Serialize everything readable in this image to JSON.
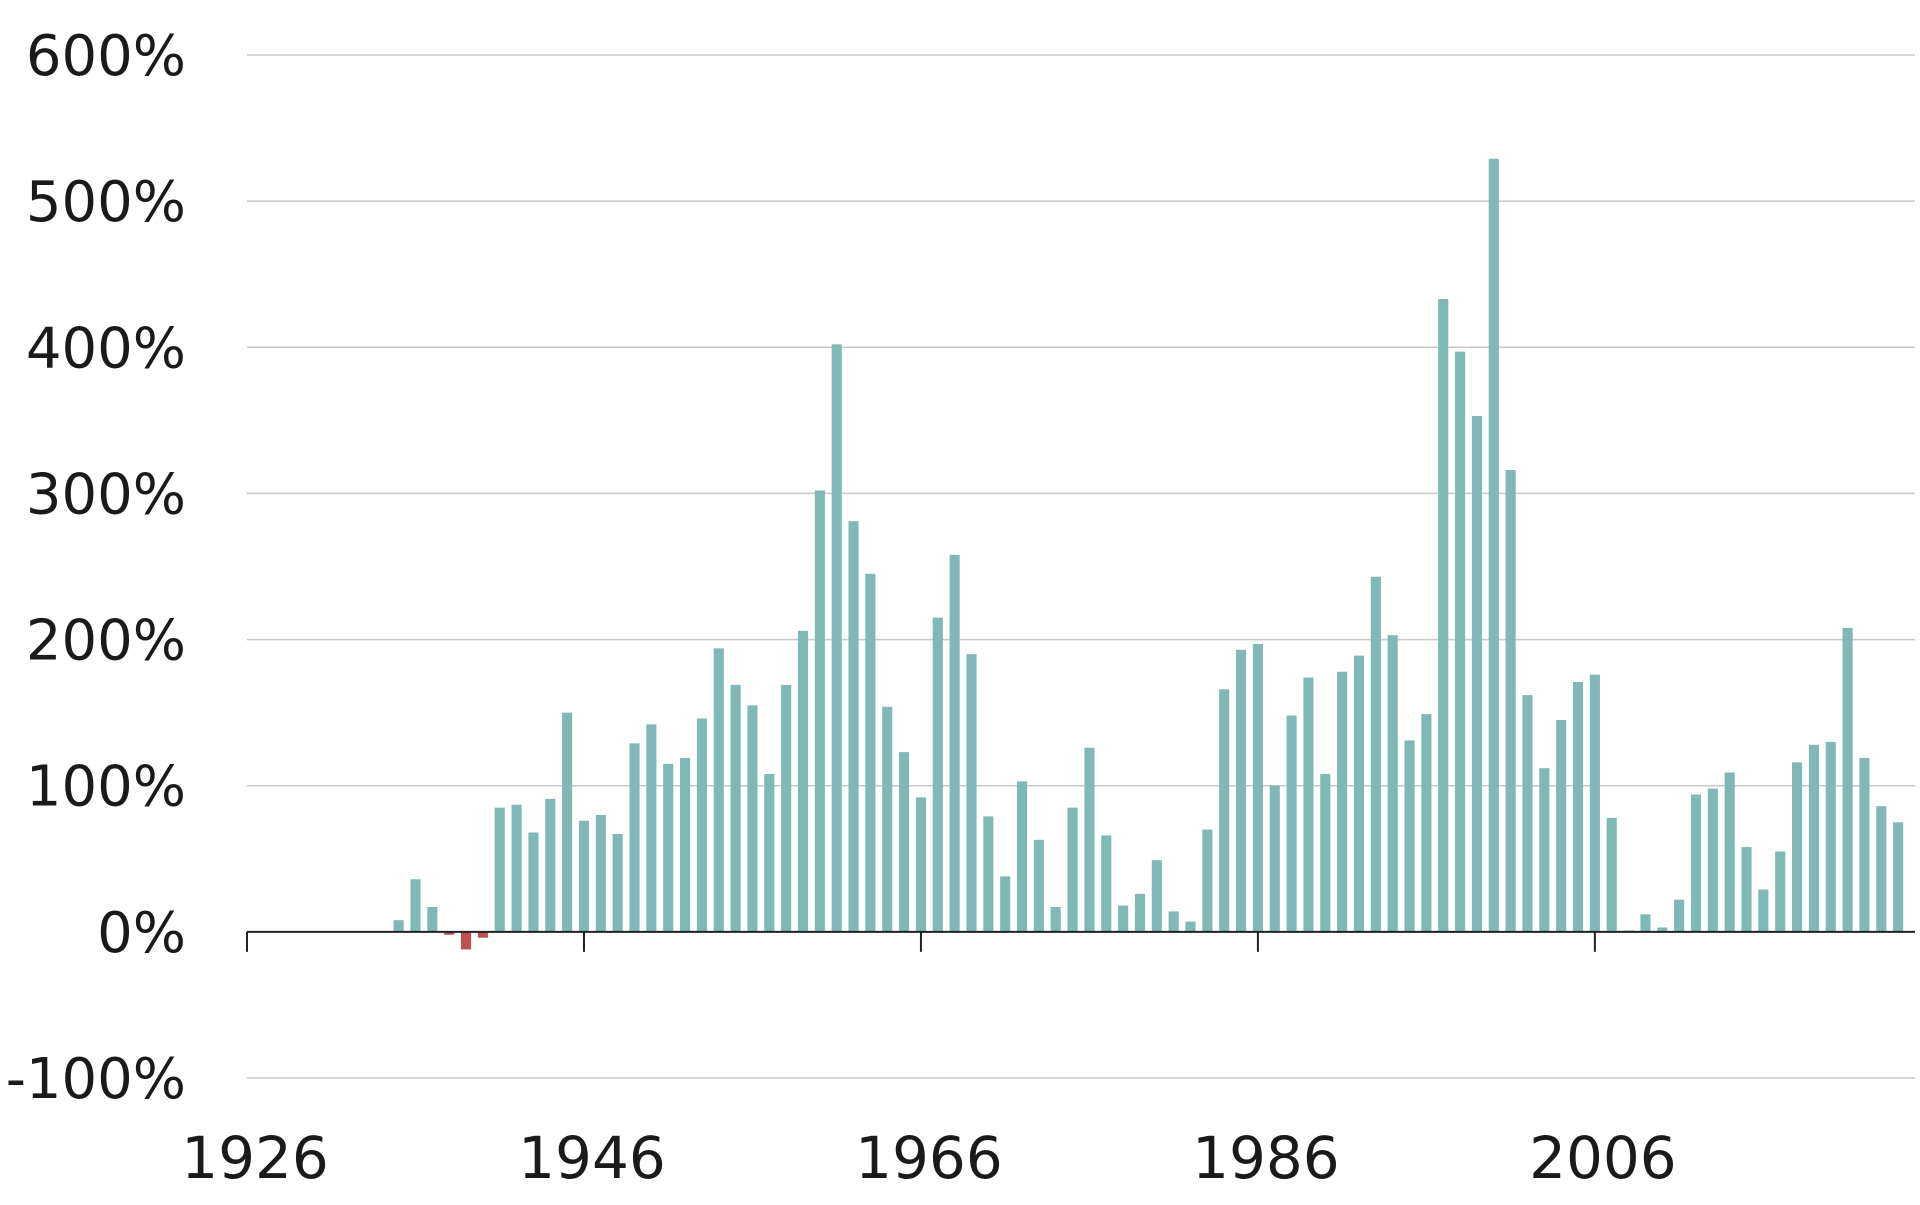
{
  "chart_data": {
    "type": "bar",
    "title": "",
    "xlabel": "",
    "ylabel": "",
    "ylim": [
      -100,
      600
    ],
    "xlim": [
      1926,
      2025
    ],
    "y_ticks": [
      600,
      500,
      400,
      300,
      200,
      100,
      0,
      -100
    ],
    "y_tick_labels": [
      "600%",
      "500%",
      "400%",
      "300%",
      "200%",
      "100%",
      "0%",
      "-100%"
    ],
    "x_ticks": [
      1926,
      1946,
      1966,
      1986,
      2006
    ],
    "x_tick_labels": [
      "1926",
      "1946",
      "1966",
      "1986",
      "2006"
    ],
    "grid": true,
    "colors": {
      "positive": "#7fb8b4",
      "negative": "#c0504d",
      "grid": "#c8c8c8",
      "axis": "#222222"
    },
    "years": [
      1935,
      1936,
      1937,
      1938,
      1939,
      1940,
      1941,
      1942,
      1943,
      1944,
      1945,
      1946,
      1947,
      1948,
      1949,
      1950,
      1951,
      1952,
      1953,
      1954,
      1955,
      1956,
      1957,
      1958,
      1959,
      1960,
      1961,
      1962,
      1963,
      1964,
      1965,
      1966,
      1967,
      1968,
      1969,
      1970,
      1971,
      1972,
      1973,
      1974,
      1975,
      1976,
      1977,
      1978,
      1979,
      1980,
      1981,
      1982,
      1983,
      1984,
      1985,
      1986,
      1987,
      1988,
      1989,
      1990,
      1991,
      1992,
      1993,
      1994,
      1995,
      1996,
      1997,
      1998,
      1999,
      2000,
      2001,
      2002,
      2003,
      2004,
      2005,
      2006,
      2007,
      2008,
      2009,
      2010,
      2011,
      2012,
      2013,
      2014,
      2015,
      2016,
      2017,
      2018,
      2019,
      2020,
      2021,
      2022,
      2023,
      2024
    ],
    "values": [
      8,
      36,
      17,
      -2,
      -12,
      -4,
      85,
      87,
      68,
      91,
      150,
      76,
      80,
      67,
      129,
      142,
      115,
      119,
      146,
      194,
      169,
      155,
      108,
      169,
      206,
      302,
      402,
      281,
      245,
      154,
      123,
      92,
      215,
      258,
      190,
      79,
      38,
      103,
      63,
      17,
      85,
      126,
      66,
      18,
      26,
      49,
      14,
      7,
      70,
      166,
      193,
      197,
      100,
      148,
      174,
      108,
      178,
      189,
      243,
      203,
      131,
      149,
      433,
      397,
      353,
      529,
      316,
      162,
      112,
      145,
      171,
      176,
      78,
      1,
      12,
      3,
      22,
      94,
      98,
      109,
      58,
      29,
      55,
      116,
      128,
      130,
      208,
      119,
      86,
      75
    ]
  }
}
